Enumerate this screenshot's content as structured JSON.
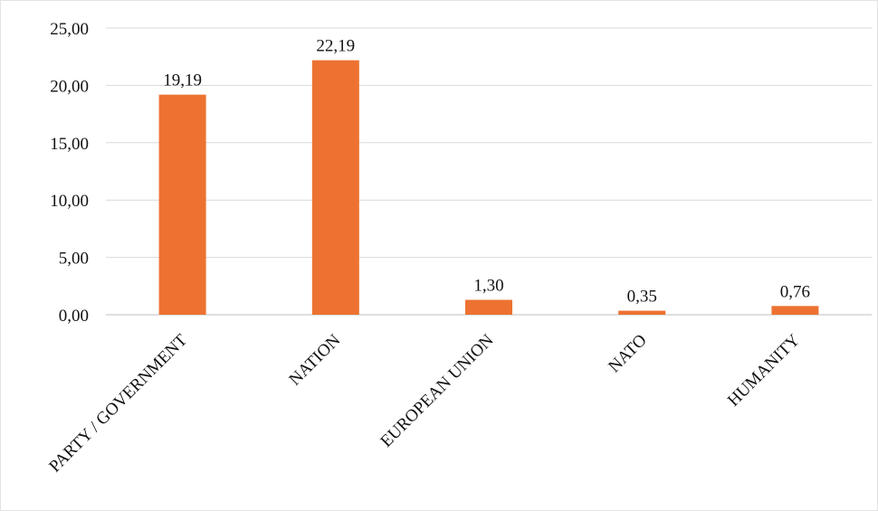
{
  "chart_data": {
    "type": "bar",
    "title": "",
    "xlabel": "",
    "ylabel": "",
    "categories": [
      "PARTY / GOVERNMENT",
      "NATION",
      "EUROPEAN UNION",
      "NATO",
      "HUMANITY"
    ],
    "values": [
      19.19,
      22.19,
      1.3,
      0.35,
      0.76
    ],
    "data_labels": [
      "19,19",
      "22,19",
      "1,30",
      "0,35",
      "0,76"
    ],
    "ylim": [
      0,
      25
    ],
    "yticks": [
      0,
      5,
      10,
      15,
      20,
      25
    ],
    "ytick_labels": [
      "0,00",
      "5,00",
      "10,00",
      "15,00",
      "20,00",
      "25,00"
    ],
    "grid": true,
    "legend": "none",
    "colors": {
      "bar": "#ED7231",
      "grid": "#D9D9D9",
      "axis": "#BFBFBF"
    }
  }
}
